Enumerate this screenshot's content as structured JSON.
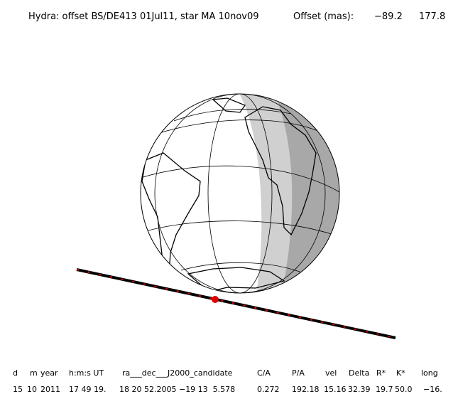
{
  "header": {
    "title": "Hydra: offset BS/DE413 01Jul11, star MA 10nov09",
    "offset_label": "Offset (mas):",
    "offsets": [
      "−89.2",
      "177.8"
    ]
  },
  "table": {
    "headers": [
      "d",
      "m",
      "year",
      "h:m:s UT",
      "ra___dec___J2000_candidate",
      "C/A",
      "P/A",
      "vel",
      "Delta",
      "R*",
      "K*",
      "long"
    ],
    "row": [
      "15",
      "10",
      "2011",
      "17 49 19.",
      "18 20 52.2005 −19 13  5.578",
      "0.272",
      "192.18",
      "15.16",
      "32.39",
      "19.7",
      "50.0",
      "−16."
    ]
  }
}
